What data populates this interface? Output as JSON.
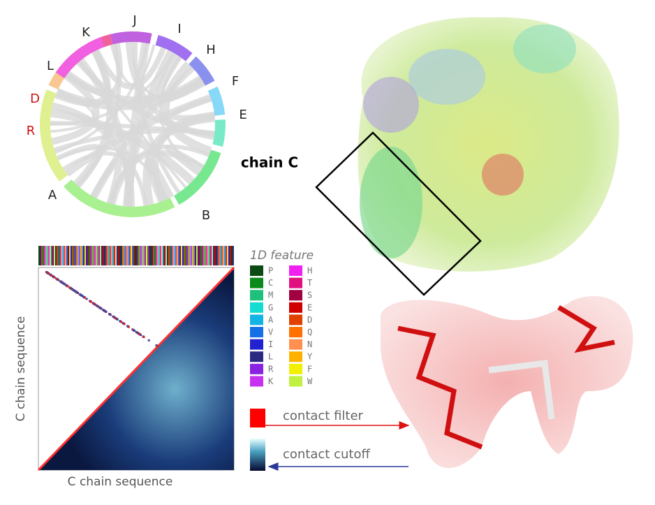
{
  "chord_diagram": {
    "labels": [
      {
        "text": "J",
        "color": "#222222"
      },
      {
        "text": "I",
        "color": "#222222"
      },
      {
        "text": "H",
        "color": "#222222"
      },
      {
        "text": "K",
        "color": "#222222"
      },
      {
        "text": "L",
        "color": "#222222"
      },
      {
        "text": "F",
        "color": "#222222"
      },
      {
        "text": "D",
        "color": "#cc1111"
      },
      {
        "text": "E",
        "color": "#222222"
      },
      {
        "text": "R",
        "color": "#cc1111"
      },
      {
        "text": "chain C",
        "color": "#000000"
      },
      {
        "text": "A",
        "color": "#222222"
      },
      {
        "text": "B",
        "color": "#222222"
      }
    ]
  },
  "contact_map": {
    "x_label": "C chain sequence",
    "y_label": "C chain sequence",
    "legend_title": "1D feature",
    "features": [
      {
        "code": "P",
        "color": "#0b4a12"
      },
      {
        "code": "C",
        "color": "#0a8a1a"
      },
      {
        "code": "M",
        "color": "#1fc07a"
      },
      {
        "code": "G",
        "color": "#14dcd0"
      },
      {
        "code": "A",
        "color": "#12b4e6"
      },
      {
        "code": "V",
        "color": "#1470e6"
      },
      {
        "code": "I",
        "color": "#2222d0"
      },
      {
        "code": "L",
        "color": "#2a2a82"
      },
      {
        "code": "R",
        "color": "#8a22e2"
      },
      {
        "code": "K",
        "color": "#c632f0"
      },
      {
        "code": "H",
        "color": "#f020f0"
      },
      {
        "code": "T",
        "color": "#e01080"
      },
      {
        "code": "S",
        "color": "#a00040"
      },
      {
        "code": "E",
        "color": "#d00000"
      },
      {
        "code": "D",
        "color": "#e04000"
      },
      {
        "code": "Q",
        "color": "#ff7000"
      },
      {
        "code": "N",
        "color": "#ff9050"
      },
      {
        "code": "Y",
        "color": "#ffb000"
      },
      {
        "code": "F",
        "color": "#f0f000"
      },
      {
        "code": "W",
        "color": "#c0f040"
      }
    ],
    "filter_label": "contact filter",
    "cutoff_label": "contact cutoff"
  }
}
